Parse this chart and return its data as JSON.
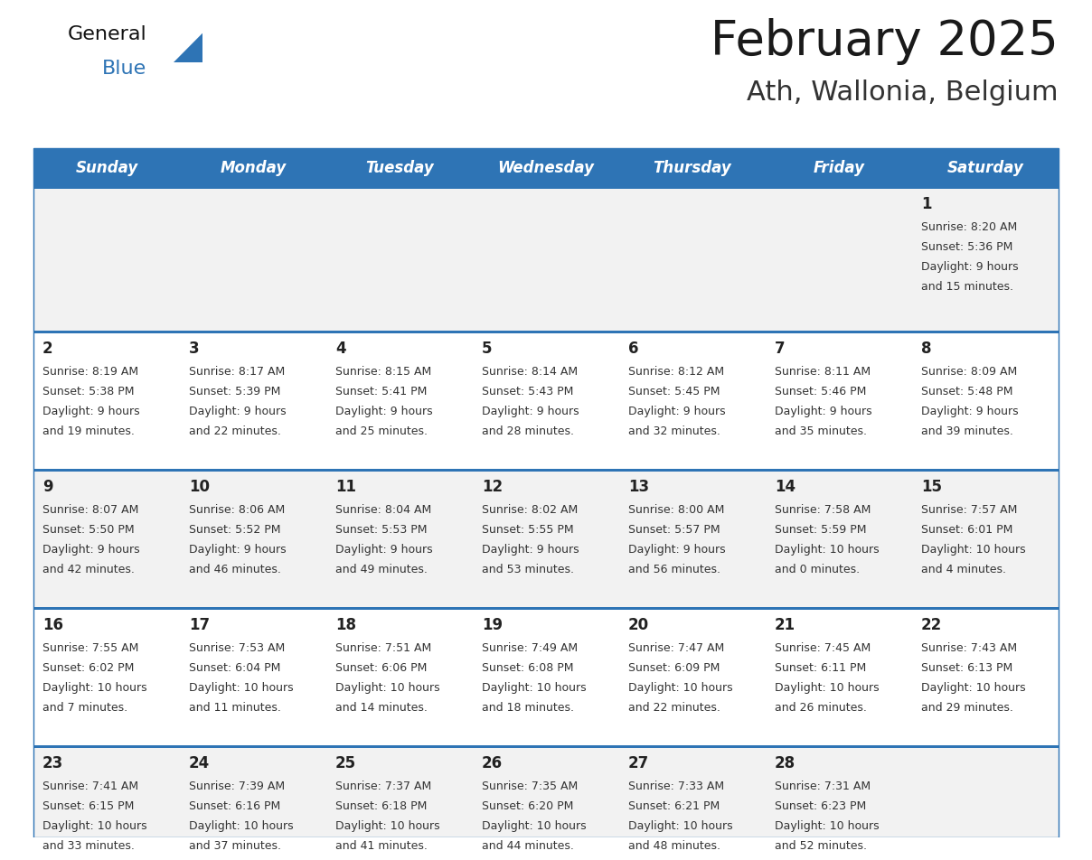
{
  "title": "February 2025",
  "subtitle": "Ath, Wallonia, Belgium",
  "days_of_week": [
    "Sunday",
    "Monday",
    "Tuesday",
    "Wednesday",
    "Thursday",
    "Friday",
    "Saturday"
  ],
  "header_bg": "#2E74B5",
  "header_text_color": "#FFFFFF",
  "cell_bg_odd": "#F2F2F2",
  "cell_bg_even": "#FFFFFF",
  "separator_color": "#2E74B5",
  "day_number_color": "#222222",
  "cell_text_color": "#333333",
  "title_color": "#1a1a1a",
  "subtitle_color": "#333333",
  "calendar_data": [
    [
      null,
      null,
      null,
      null,
      null,
      null,
      {
        "day": 1,
        "sunrise": "8:20 AM",
        "sunset": "5:36 PM",
        "daylight": "9 hours and 15 minutes"
      }
    ],
    [
      {
        "day": 2,
        "sunrise": "8:19 AM",
        "sunset": "5:38 PM",
        "daylight": "9 hours and 19 minutes"
      },
      {
        "day": 3,
        "sunrise": "8:17 AM",
        "sunset": "5:39 PM",
        "daylight": "9 hours and 22 minutes"
      },
      {
        "day": 4,
        "sunrise": "8:15 AM",
        "sunset": "5:41 PM",
        "daylight": "9 hours and 25 minutes"
      },
      {
        "day": 5,
        "sunrise": "8:14 AM",
        "sunset": "5:43 PM",
        "daylight": "9 hours and 28 minutes"
      },
      {
        "day": 6,
        "sunrise": "8:12 AM",
        "sunset": "5:45 PM",
        "daylight": "9 hours and 32 minutes"
      },
      {
        "day": 7,
        "sunrise": "8:11 AM",
        "sunset": "5:46 PM",
        "daylight": "9 hours and 35 minutes"
      },
      {
        "day": 8,
        "sunrise": "8:09 AM",
        "sunset": "5:48 PM",
        "daylight": "9 hours and 39 minutes"
      }
    ],
    [
      {
        "day": 9,
        "sunrise": "8:07 AM",
        "sunset": "5:50 PM",
        "daylight": "9 hours and 42 minutes"
      },
      {
        "day": 10,
        "sunrise": "8:06 AM",
        "sunset": "5:52 PM",
        "daylight": "9 hours and 46 minutes"
      },
      {
        "day": 11,
        "sunrise": "8:04 AM",
        "sunset": "5:53 PM",
        "daylight": "9 hours and 49 minutes"
      },
      {
        "day": 12,
        "sunrise": "8:02 AM",
        "sunset": "5:55 PM",
        "daylight": "9 hours and 53 minutes"
      },
      {
        "day": 13,
        "sunrise": "8:00 AM",
        "sunset": "5:57 PM",
        "daylight": "9 hours and 56 minutes"
      },
      {
        "day": 14,
        "sunrise": "7:58 AM",
        "sunset": "5:59 PM",
        "daylight": "10 hours and 0 minutes"
      },
      {
        "day": 15,
        "sunrise": "7:57 AM",
        "sunset": "6:01 PM",
        "daylight": "10 hours and 4 minutes"
      }
    ],
    [
      {
        "day": 16,
        "sunrise": "7:55 AM",
        "sunset": "6:02 PM",
        "daylight": "10 hours and 7 minutes"
      },
      {
        "day": 17,
        "sunrise": "7:53 AM",
        "sunset": "6:04 PM",
        "daylight": "10 hours and 11 minutes"
      },
      {
        "day": 18,
        "sunrise": "7:51 AM",
        "sunset": "6:06 PM",
        "daylight": "10 hours and 14 minutes"
      },
      {
        "day": 19,
        "sunrise": "7:49 AM",
        "sunset": "6:08 PM",
        "daylight": "10 hours and 18 minutes"
      },
      {
        "day": 20,
        "sunrise": "7:47 AM",
        "sunset": "6:09 PM",
        "daylight": "10 hours and 22 minutes"
      },
      {
        "day": 21,
        "sunrise": "7:45 AM",
        "sunset": "6:11 PM",
        "daylight": "10 hours and 26 minutes"
      },
      {
        "day": 22,
        "sunrise": "7:43 AM",
        "sunset": "6:13 PM",
        "daylight": "10 hours and 29 minutes"
      }
    ],
    [
      {
        "day": 23,
        "sunrise": "7:41 AM",
        "sunset": "6:15 PM",
        "daylight": "10 hours and 33 minutes"
      },
      {
        "day": 24,
        "sunrise": "7:39 AM",
        "sunset": "6:16 PM",
        "daylight": "10 hours and 37 minutes"
      },
      {
        "day": 25,
        "sunrise": "7:37 AM",
        "sunset": "6:18 PM",
        "daylight": "10 hours and 41 minutes"
      },
      {
        "day": 26,
        "sunrise": "7:35 AM",
        "sunset": "6:20 PM",
        "daylight": "10 hours and 44 minutes"
      },
      {
        "day": 27,
        "sunrise": "7:33 AM",
        "sunset": "6:21 PM",
        "daylight": "10 hours and 48 minutes"
      },
      {
        "day": 28,
        "sunrise": "7:31 AM",
        "sunset": "6:23 PM",
        "daylight": "10 hours and 52 minutes"
      },
      null
    ]
  ],
  "logo_text_general": "General",
  "logo_text_blue": "Blue",
  "logo_triangle_color": "#2E74B5"
}
